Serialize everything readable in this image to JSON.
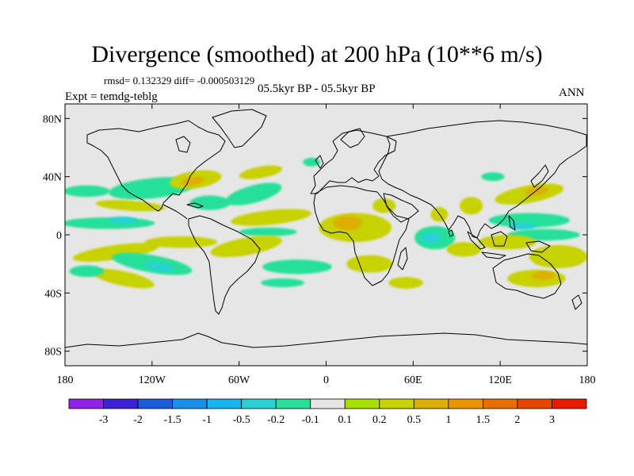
{
  "title": "Divergence (smoothed) at 200 hPa (10**6 m/s)",
  "stats": "rmsd= 0.132329 diff= -0.000503129",
  "period": "05.5kyr BP - 05.5kyr BP",
  "experiment": "Expt = temdg-teblg",
  "season": "ANN",
  "map": {
    "projection": "cylindrical equidistant",
    "lon_range": [
      -180,
      180
    ],
    "lat_range": [
      -90,
      90
    ],
    "background_color": "#e6e6e6",
    "lat_ticks": [
      {
        "lat": 80,
        "label": "80N"
      },
      {
        "lat": 40,
        "label": "40N"
      },
      {
        "lat": 0,
        "label": "0"
      },
      {
        "lat": -40,
        "label": "40S"
      },
      {
        "lat": -80,
        "label": "80S"
      }
    ],
    "lon_ticks": [
      {
        "lon": -180,
        "label": "180"
      },
      {
        "lon": -120,
        "label": "120W"
      },
      {
        "lon": -60,
        "label": "60W"
      },
      {
        "lon": 0,
        "label": "0"
      },
      {
        "lon": 60,
        "label": "60E"
      },
      {
        "lon": 120,
        "label": "120E"
      },
      {
        "lon": 180,
        "label": "180"
      }
    ],
    "fields": [
      {
        "name": "npac-neg-1",
        "lon": -165,
        "lat": 30,
        "rx": 16,
        "ry": 4,
        "rot": 0,
        "level": -0.2
      },
      {
        "name": "npac-neg-2",
        "lon": -120,
        "lat": 32,
        "rx": 30,
        "ry": 7,
        "rot": -6,
        "level": -0.2
      },
      {
        "name": "npac-pos",
        "lon": -135,
        "lat": 20,
        "rx": 24,
        "ry": 3.5,
        "rot": 4,
        "level": 0.2
      },
      {
        "name": "npac-neg-3",
        "lon": -150,
        "lat": 8,
        "rx": 32,
        "ry": 4,
        "rot": 0,
        "level": -0.2
      },
      {
        "name": "npac-neg-core",
        "lon": -140,
        "lat": 10,
        "rx": 10,
        "ry": 2.5,
        "rot": 0,
        "level": -0.5
      },
      {
        "name": "us-pos",
        "lon": -90,
        "lat": 38,
        "rx": 18,
        "ry": 6,
        "rot": -8,
        "level": 0.2
      },
      {
        "name": "us-pos-core",
        "lon": -92,
        "lat": 37,
        "rx": 8,
        "ry": 3,
        "rot": -8,
        "level": 0.5
      },
      {
        "name": "gulf-neg",
        "lon": -80,
        "lat": 22,
        "rx": 14,
        "ry": 5,
        "rot": 0,
        "level": -0.2
      },
      {
        "name": "natl-neg",
        "lon": -50,
        "lat": 28,
        "rx": 20,
        "ry": 6,
        "rot": -15,
        "level": -0.2
      },
      {
        "name": "natl-pos",
        "lon": -45,
        "lat": 43,
        "rx": 15,
        "ry": 4,
        "rot": -10,
        "level": 0.2
      },
      {
        "name": "natl-neg-2",
        "lon": -10,
        "lat": 50,
        "rx": 6,
        "ry": 3,
        "rot": 0,
        "level": -0.2
      },
      {
        "name": "trop-atl-pos",
        "lon": -38,
        "lat": 12,
        "rx": 28,
        "ry": 5,
        "rot": -6,
        "level": 0.2
      },
      {
        "name": "trop-atl-neg",
        "lon": -40,
        "lat": 2,
        "rx": 20,
        "ry": 3,
        "rot": 0,
        "level": -0.2
      },
      {
        "name": "sam-pos",
        "lon": -55,
        "lat": -8,
        "rx": 25,
        "ry": 6,
        "rot": -10,
        "level": 0.2
      },
      {
        "name": "spac-pos-1",
        "lon": -145,
        "lat": -12,
        "rx": 30,
        "ry": 5,
        "rot": -8,
        "level": 0.2
      },
      {
        "name": "spac-pos-2",
        "lon": -100,
        "lat": -5,
        "rx": 25,
        "ry": 4,
        "rot": 0,
        "level": 0.2
      },
      {
        "name": "spac-neg-1",
        "lon": -120,
        "lat": -20,
        "rx": 28,
        "ry": 6,
        "rot": 10,
        "level": -0.2
      },
      {
        "name": "spac-neg-core",
        "lon": -115,
        "lat": -22,
        "rx": 10,
        "ry": 3,
        "rot": 10,
        "level": -0.5
      },
      {
        "name": "spac-pos-3",
        "lon": -140,
        "lat": -30,
        "rx": 22,
        "ry": 5,
        "rot": 12,
        "level": 0.2
      },
      {
        "name": "satl-neg",
        "lon": -20,
        "lat": -22,
        "rx": 24,
        "ry": 5,
        "rot": 0,
        "level": -0.2
      },
      {
        "name": "satl-neg-2",
        "lon": -30,
        "lat": -33,
        "rx": 15,
        "ry": 3,
        "rot": 0,
        "level": -0.2
      },
      {
        "name": "africa-pos",
        "lon": 20,
        "lat": 5,
        "rx": 25,
        "ry": 10,
        "rot": 0,
        "level": 0.2
      },
      {
        "name": "africa-pos-core",
        "lon": 15,
        "lat": 8,
        "rx": 10,
        "ry": 5,
        "rot": 0,
        "level": 0.5
      },
      {
        "name": "sahel-pos",
        "lon": 40,
        "lat": 20,
        "rx": 8,
        "ry": 5,
        "rot": 0,
        "level": 0.2
      },
      {
        "name": "safr-pos",
        "lon": 30,
        "lat": -20,
        "rx": 16,
        "ry": 6,
        "rot": 0,
        "level": 0.2
      },
      {
        "name": "sind-pos",
        "lon": 55,
        "lat": -33,
        "rx": 12,
        "ry": 4,
        "rot": 0,
        "level": 0.2
      },
      {
        "name": "ind-neg",
        "lon": 75,
        "lat": -2,
        "rx": 14,
        "ry": 8,
        "rot": 0,
        "level": -0.2
      },
      {
        "name": "ind-neg-core",
        "lon": 72,
        "lat": -2,
        "rx": 7,
        "ry": 4,
        "rot": 0,
        "level": -0.5
      },
      {
        "name": "india-pos",
        "lon": 78,
        "lat": 14,
        "rx": 6,
        "ry": 5,
        "rot": 0,
        "level": 0.2
      },
      {
        "name": "india-pos-2",
        "lon": 100,
        "lat": 20,
        "rx": 8,
        "ry": 6,
        "rot": 0,
        "level": 0.2
      },
      {
        "name": "eind-pos",
        "lon": 95,
        "lat": -10,
        "rx": 12,
        "ry": 5,
        "rot": 0,
        "level": 0.2
      },
      {
        "name": "wpac-pos",
        "lon": 140,
        "lat": 28,
        "rx": 24,
        "ry": 6,
        "rot": -10,
        "level": 0.2
      },
      {
        "name": "wpac-pos-core",
        "lon": 145,
        "lat": 30,
        "rx": 8,
        "ry": 3,
        "rot": -10,
        "level": 0.5
      },
      {
        "name": "wpac-neg",
        "lon": 140,
        "lat": 10,
        "rx": 28,
        "ry": 5,
        "rot": 0,
        "level": -0.2
      },
      {
        "name": "wpac-neg-2",
        "lon": 150,
        "lat": 0,
        "rx": 25,
        "ry": 4,
        "rot": 0,
        "level": -0.2
      },
      {
        "name": "wpac-neg-core",
        "lon": 135,
        "lat": 6,
        "rx": 10,
        "ry": 2.5,
        "rot": 0,
        "level": -0.5
      },
      {
        "name": "indonesia-pos",
        "lon": 125,
        "lat": -5,
        "rx": 20,
        "ry": 5,
        "rot": 0,
        "level": 0.2
      },
      {
        "name": "spcz-pos",
        "lon": 160,
        "lat": -15,
        "rx": 20,
        "ry": 8,
        "rot": 0,
        "level": 0.2
      },
      {
        "name": "aus-pos",
        "lon": 145,
        "lat": -30,
        "rx": 20,
        "ry": 6,
        "rot": 0,
        "level": 0.2
      },
      {
        "name": "aus-pos-core",
        "lon": 150,
        "lat": -28,
        "rx": 8,
        "ry": 3,
        "rot": 0,
        "level": 0.5
      },
      {
        "name": "nw-pac-neg",
        "lon": 115,
        "lat": 40,
        "rx": 8,
        "ry": 3,
        "rot": 0,
        "level": -0.2
      },
      {
        "name": "cross-equator-neg",
        "lon": -165,
        "lat": -25,
        "rx": 12,
        "ry": 4,
        "rot": 0,
        "level": -0.2
      }
    ]
  },
  "colorbar": {
    "colors": [
      "#8f22e8",
      "#3b22d8",
      "#1b5cd8",
      "#1b8ee8",
      "#18b4ec",
      "#28d2d2",
      "#28e09a",
      "#e6e6e6",
      "#a8e000",
      "#c8d200",
      "#dcb000",
      "#e89600",
      "#e86e00",
      "#e84600",
      "#e81a00"
    ],
    "labels": [
      "-3",
      "-2",
      "-1.5",
      "-1",
      "-0.5",
      "-0.2",
      "-0.1",
      "0.1",
      "0.2",
      "0.5",
      "1",
      "1.5",
      "2",
      "3"
    ]
  },
  "chart_data": {
    "type": "heatmap",
    "title": "Divergence (smoothed) at 200 hPa (10**6 m/s)",
    "subtitle": "05.5kyr BP - 05.5kyr BP",
    "variable": "Divergence (smoothed)",
    "level": "200 hPa",
    "units": "10**6 m/s",
    "rmsd": 0.132329,
    "diff": -0.000503129,
    "xlim": [
      -180,
      180
    ],
    "ylim": [
      -90,
      90
    ],
    "contour_levels": [
      -3,
      -2,
      -1.5,
      -1,
      -0.5,
      -0.2,
      -0.1,
      0.1,
      0.2,
      0.5,
      1,
      1.5,
      2,
      3
    ]
  }
}
